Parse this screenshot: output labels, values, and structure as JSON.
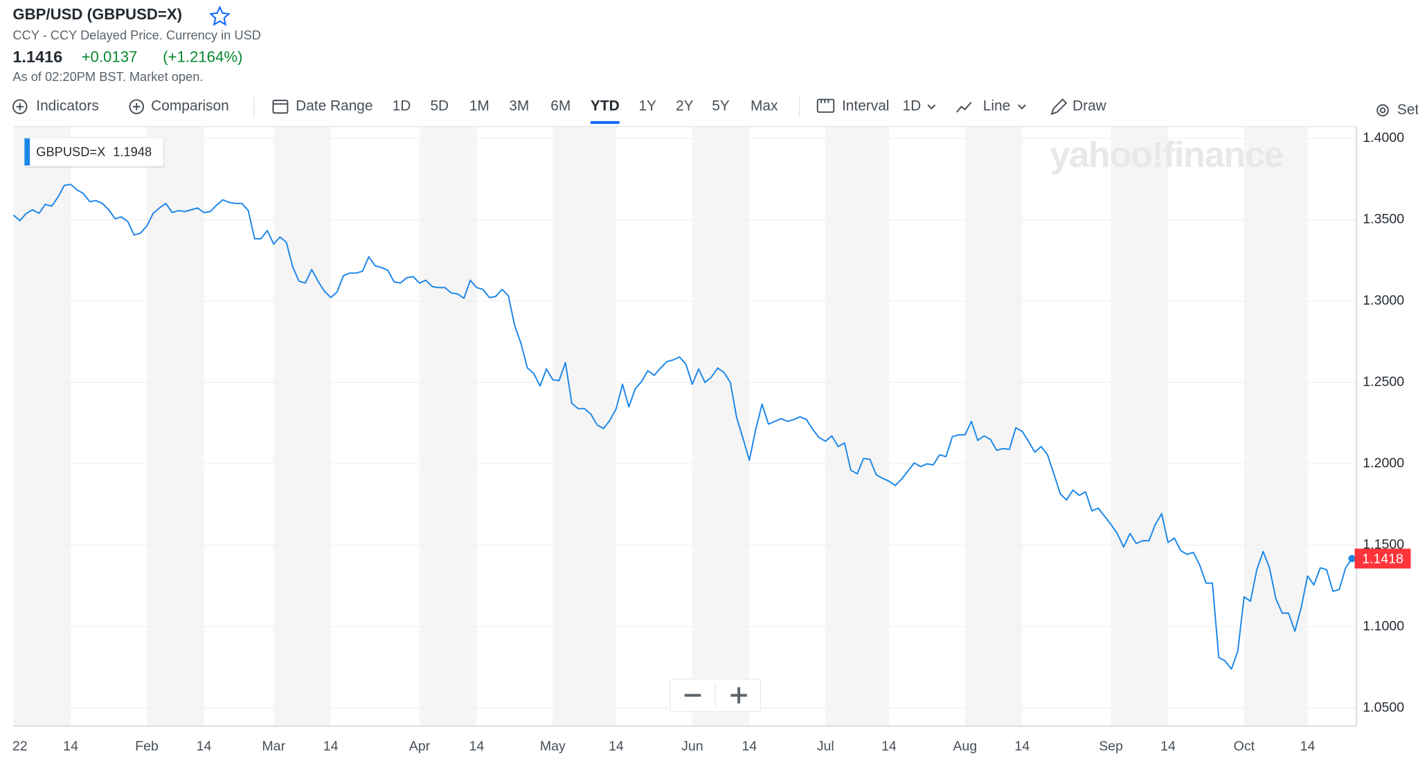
{
  "header": {
    "title": "GBP/USD (GBPUSD=X)",
    "subtitle": "CCY - CCY Delayed Price. Currency in USD",
    "price": "1.1416",
    "change": "+0.0137",
    "change_pct": "(+1.2164%)",
    "status": "As of 02:20PM BST. Market open."
  },
  "toolbar": {
    "indicators": "Indicators",
    "comparison": "Comparison",
    "date_range": "Date Range",
    "ranges": [
      "1D",
      "5D",
      "1M",
      "3M",
      "6M",
      "YTD",
      "1Y",
      "2Y",
      "5Y",
      "Max"
    ],
    "active_range_index": 5,
    "interval_label": "Interval",
    "interval": "1D",
    "chart_type": "Line",
    "draw": "Draw",
    "settings": "Settings"
  },
  "chart_data": {
    "type": "line",
    "watermark": "yahoo!finance",
    "categories": [
      null,
      "22",
      null,
      null,
      null,
      null,
      null,
      null,
      null,
      "14",
      null,
      null,
      null,
      null,
      null,
      null,
      null,
      null,
      null,
      null,
      null,
      "Feb",
      null,
      null,
      null,
      null,
      null,
      null,
      null,
      null,
      "14",
      null,
      null,
      null,
      null,
      null,
      null,
      null,
      null,
      null,
      null,
      "Mar",
      null,
      null,
      null,
      null,
      null,
      null,
      null,
      null,
      "14",
      null,
      null,
      null,
      null,
      null,
      null,
      null,
      null,
      null,
      null,
      null,
      null,
      null,
      "Apr",
      null,
      null,
      null,
      null,
      null,
      null,
      null,
      null,
      "14",
      null,
      null,
      null,
      null,
      null,
      null,
      null,
      null,
      null,
      null,
      null,
      "May",
      null,
      null,
      null,
      null,
      null,
      null,
      null,
      null,
      null,
      "14",
      null,
      null,
      null,
      null,
      null,
      null,
      null,
      null,
      null,
      null,
      null,
      "Jun",
      null,
      null,
      null,
      null,
      null,
      null,
      null,
      null,
      "14",
      null,
      null,
      null,
      null,
      null,
      null,
      null,
      null,
      null,
      null,
      null,
      "Jul",
      null,
      null,
      null,
      null,
      null,
      null,
      null,
      null,
      null,
      "14",
      null,
      null,
      null,
      null,
      null,
      null,
      null,
      null,
      null,
      null,
      null,
      "Aug",
      null,
      null,
      null,
      null,
      null,
      null,
      null,
      null,
      "14",
      null,
      null,
      null,
      null,
      null,
      null,
      null,
      null,
      null,
      null,
      null,
      null,
      null,
      "Sep",
      null,
      null,
      null,
      null,
      null,
      null,
      null,
      null,
      "14",
      null,
      null,
      null,
      null,
      null,
      null,
      null,
      null,
      null,
      null,
      null,
      "Oct",
      null,
      null,
      null,
      null,
      null,
      null,
      null,
      null,
      null,
      "14",
      null,
      null,
      null,
      null,
      null,
      null,
      null
    ],
    "series": [
      {
        "name": "GBPUSD=X",
        "color": "#1a86e8",
        "values": [
          1.3528,
          1.3494,
          1.3539,
          1.3561,
          1.3539,
          1.3594,
          1.3583,
          1.3639,
          1.3711,
          1.3717,
          1.3683,
          1.3661,
          1.3611,
          1.3617,
          1.36,
          1.3561,
          1.3506,
          1.3517,
          1.3489,
          1.3406,
          1.3417,
          1.3461,
          1.3539,
          1.3572,
          1.36,
          1.3544,
          1.3556,
          1.355,
          1.3561,
          1.3572,
          1.3544,
          1.355,
          1.3589,
          1.3622,
          1.3606,
          1.36,
          1.36,
          1.3556,
          1.3383,
          1.3383,
          1.3433,
          1.335,
          1.3394,
          1.3361,
          1.3211,
          1.3122,
          1.3111,
          1.3194,
          1.3122,
          1.3061,
          1.3022,
          1.3056,
          1.3156,
          1.3172,
          1.3172,
          1.3183,
          1.3272,
          1.3217,
          1.3206,
          1.3189,
          1.3117,
          1.3111,
          1.3144,
          1.315,
          1.3111,
          1.3128,
          1.3089,
          1.3083,
          1.3083,
          1.305,
          1.3044,
          1.3017,
          1.3128,
          1.3083,
          1.3072,
          1.3022,
          1.3028,
          1.3072,
          1.3033,
          1.285,
          1.2739,
          1.2589,
          1.2556,
          1.2478,
          1.2583,
          1.2517,
          1.2511,
          1.2622,
          1.2372,
          1.2339,
          1.2339,
          1.2306,
          1.2239,
          1.2217,
          1.2267,
          1.2339,
          1.2489,
          1.235,
          1.2461,
          1.2506,
          1.2572,
          1.2544,
          1.2589,
          1.2628,
          1.2639,
          1.2656,
          1.2611,
          1.2489,
          1.2583,
          1.25,
          1.2533,
          1.2589,
          1.2561,
          1.25,
          1.2283,
          1.2156,
          1.2022,
          1.2211,
          1.2367,
          1.2244,
          1.2261,
          1.2278,
          1.2261,
          1.2272,
          1.2289,
          1.2272,
          1.2211,
          1.2161,
          1.2139,
          1.2172,
          1.2106,
          1.2128,
          1.1961,
          1.1939,
          1.2033,
          1.2028,
          1.1933,
          1.1911,
          1.1894,
          1.1867,
          1.1906,
          1.1956,
          1.2006,
          1.1983,
          1.2,
          1.1994,
          1.2056,
          1.2044,
          1.2167,
          1.2178,
          1.2178,
          1.2261,
          1.2144,
          1.2172,
          1.215,
          1.2083,
          1.2094,
          1.2089,
          1.2222,
          1.22,
          1.2139,
          1.2072,
          1.2106,
          1.2056,
          1.1939,
          1.1817,
          1.1778,
          1.1839,
          1.1806,
          1.1828,
          1.1711,
          1.1728,
          1.1678,
          1.1628,
          1.1572,
          1.1489,
          1.1572,
          1.1511,
          1.1528,
          1.1528,
          1.1628,
          1.1694,
          1.1517,
          1.1544,
          1.1467,
          1.1444,
          1.1456,
          1.1378,
          1.1267,
          1.1267,
          1.0811,
          1.0789,
          1.0739,
          1.085,
          1.1183,
          1.1156,
          1.135,
          1.1461,
          1.1361,
          1.1172,
          1.1083,
          1.1083,
          1.0972,
          1.1117,
          1.1311,
          1.1256,
          1.1361,
          1.135,
          1.1217,
          1.1228,
          1.1361,
          1.1418
        ]
      }
    ],
    "last_price_color": "#ff333a",
    "tooltip": {
      "value": 1.1948
    },
    "ylim": [
      1.0389,
      1.4072
    ],
    "yticks": [
      {
        "value": 1.05,
        "label": "1.0500"
      },
      {
        "value": 1.1,
        "label": "1.1000"
      },
      {
        "value": 1.15,
        "label": "1.1500"
      },
      {
        "value": 1.2,
        "label": "1.2000"
      },
      {
        "value": 1.25,
        "label": "1.2500"
      },
      {
        "value": 1.3,
        "label": "1.3000"
      },
      {
        "value": 1.35,
        "label": "1.3500"
      },
      {
        "value": 1.4,
        "label": "1.4000"
      }
    ],
    "grid": true
  }
}
